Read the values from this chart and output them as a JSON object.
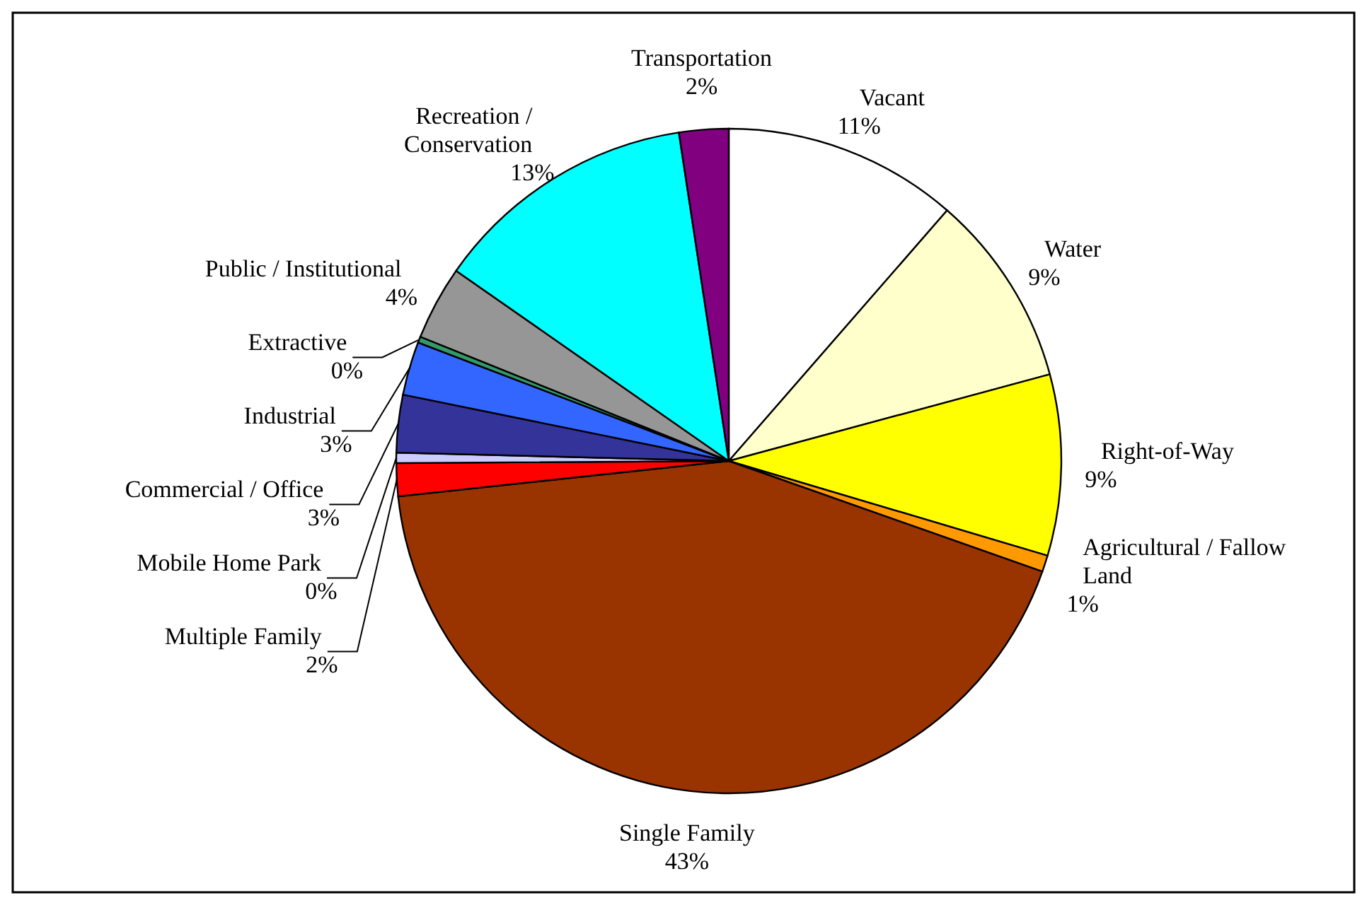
{
  "chart_data": {
    "type": "pie",
    "categories": [
      "Vacant",
      "Water",
      "Right-of-Way",
      "Agricultural / Fallow Land",
      "Single Family",
      "Multiple Family",
      "Mobile Home Park",
      "Commercial / Office",
      "Industrial",
      "Extractive",
      "Public / Institutional",
      "Recreation / Conservation",
      "Transportation"
    ],
    "values": [
      11.4,
      9.4,
      8.8,
      0.8,
      42.9,
      1.6,
      0.5,
      2.8,
      2.6,
      0.3,
      3.6,
      12.9,
      2.4
    ],
    "value_labels": [
      "11%",
      "9%",
      "9%",
      "1%",
      "43%",
      "2%",
      "0%",
      "3%",
      "3%",
      "0%",
      "4%",
      "13%",
      "2%"
    ],
    "colors": [
      "#ffffff",
      "#ffffcc",
      "#ffff00",
      "#ff9900",
      "#993300",
      "#ff0000",
      "#ccccff",
      "#333399",
      "#3366ff",
      "#339966",
      "#969696",
      "#00ffff",
      "#800080"
    ]
  }
}
